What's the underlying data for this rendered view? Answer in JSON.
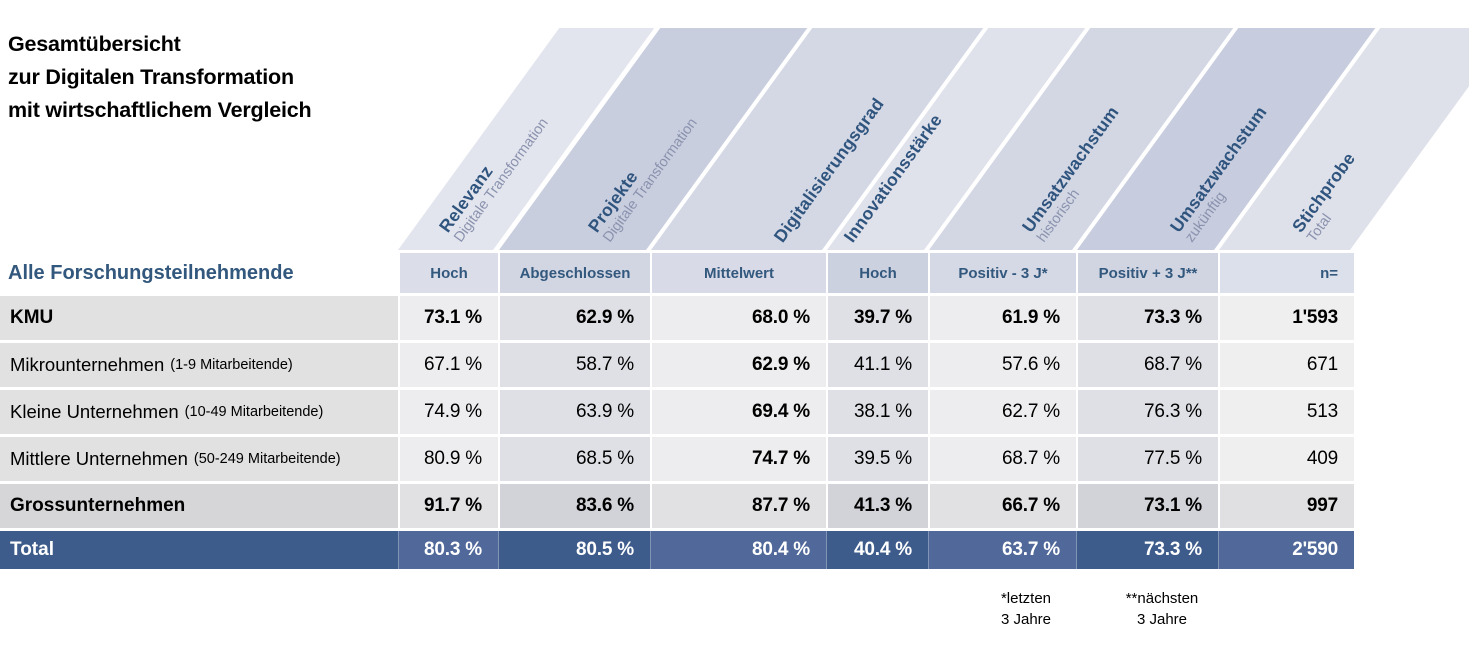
{
  "title_lines": [
    "Gesamtübersicht",
    "zur Digitalen Transformation",
    "mit wirtschaftlichem Vergleich"
  ],
  "subheader_label": "Alle Forschungsteilnehmende",
  "columns": [
    {
      "title": "Relevanz",
      "subtitle": "Digitale Transformation",
      "subheader": "Hoch",
      "band_color": "#e3e5ee",
      "subheader_color": "#dbdee9"
    },
    {
      "title": "Projekte",
      "subtitle": "Digitale Transformation",
      "subheader": "Abgeschlossen",
      "band_color": "#c9cedf",
      "subheader_color": "#d2d6e3"
    },
    {
      "title": "Digitalisierungsgrad",
      "subtitle": "",
      "subheader": "Mittelwert",
      "band_color": "#d4d8e5",
      "subheader_color": "#d8dbe7"
    },
    {
      "title": "Innovationsstärke",
      "subtitle": "",
      "subheader": "Hoch",
      "band_color": "#dfe1eb",
      "subheader_color": "#ccd1df"
    },
    {
      "title": "Umsatzwachstum",
      "subtitle": "historisch",
      "subheader": "Positiv - 3 J*",
      "band_color": "#d3d7e4",
      "subheader_color": "#d5d9e5"
    },
    {
      "title": "Umsatzwachstum",
      "subtitle": "zukünftig",
      "subheader": "Positiv + 3 J**",
      "band_color": "#c7ccde",
      "subheader_color": "#d1d5e2"
    },
    {
      "title": "Stichprobe",
      "subtitle": "Total",
      "subheader": "n=",
      "band_color": "#dfe1ea",
      "subheader_color": "#dce0ea"
    }
  ],
  "rows": [
    {
      "label": "KMU",
      "note": "",
      "values": [
        "73.1 %",
        "62.9 %",
        "68.0 %",
        "39.7 %",
        "61.9 %",
        "73.3 %",
        "1'593"
      ]
    },
    {
      "label": "Mikrounternehmen",
      "note": "(1-9 Mitarbeitende)",
      "values": [
        "67.1 %",
        "58.7 %",
        "62.9 %",
        "41.1 %",
        "57.6 %",
        "68.7 %",
        "671"
      ]
    },
    {
      "label": "Kleine Unternehmen",
      "note": "(10-49 Mitarbeitende)",
      "values": [
        "74.9 %",
        "63.9 %",
        "69.4 %",
        "38.1 %",
        "62.7 %",
        "76.3 %",
        "513"
      ]
    },
    {
      "label": "Mittlere Unternehmen",
      "note": "(50-249 Mitarbeitende)",
      "values": [
        "80.9 %",
        "68.5 %",
        "74.7 %",
        "39.5 %",
        "68.7 %",
        "77.5 %",
        "409"
      ]
    },
    {
      "label": "Grossunternehmen",
      "note": "",
      "values": [
        "91.7 %",
        "83.6 %",
        "87.7 %",
        "41.3 %",
        "66.7 %",
        "73.1 %",
        "997"
      ]
    }
  ],
  "total_row": {
    "label": "Total",
    "values": [
      "80.3 %",
      "80.5 %",
      "80.4 %",
      "40.4 %",
      "63.7 %",
      "73.3 %",
      "2'590"
    ]
  },
  "footnotes": [
    {
      "line1": "*letzten",
      "line2": "3 Jahre"
    },
    {
      "line1": "**nächsten",
      "line2": "3 Jahre"
    }
  ],
  "colors": {
    "header_title_blue": "#2f547e",
    "header_subtitle_grey": "#8a92ae",
    "subheader_text_blue": "#33587e",
    "total_row_dark": "#3d5c8b",
    "total_row_light": "#50699a",
    "row_label_grey": "#e1e1e2",
    "cell_light_grey": "#ededef",
    "cell_dark_grey": "#dfe0e5"
  },
  "chart_data": {
    "type": "table",
    "title": "Gesamtübersicht zur Digitalen Transformation mit wirtschaftlichem Vergleich",
    "columns": [
      "Relevanz Digitale Transformation - Hoch",
      "Projekte Digitale Transformation - Abgeschlossen",
      "Digitalisierungsgrad - Mittelwert",
      "Innovationsstärke - Hoch",
      "Umsatzwachstum historisch - Positiv -3J*",
      "Umsatzwachstum zukünftig - Positiv +3J**",
      "Stichprobe Total - n="
    ],
    "units": "percent (last column = sample size n)",
    "rows": [
      {
        "label": "KMU",
        "values_pct": [
          73.1,
          62.9,
          68.0,
          39.7,
          61.9,
          73.3
        ],
        "n": 1593
      },
      {
        "label": "Mikrounternehmen (1-9 Mitarbeitende)",
        "values_pct": [
          67.1,
          58.7,
          62.9,
          41.1,
          57.6,
          68.7
        ],
        "n": 671
      },
      {
        "label": "Kleine Unternehmen (10-49 Mitarbeitende)",
        "values_pct": [
          74.9,
          63.9,
          69.4,
          38.1,
          62.7,
          76.3
        ],
        "n": 513
      },
      {
        "label": "Mittlere Unternehmen (50-249 Mitarbeitende)",
        "values_pct": [
          80.9,
          68.5,
          74.7,
          39.5,
          68.7,
          77.5
        ],
        "n": 409
      },
      {
        "label": "Grossunternehmen",
        "values_pct": [
          91.7,
          83.6,
          87.7,
          41.3,
          66.7,
          73.1
        ],
        "n": 997
      },
      {
        "label": "Total",
        "values_pct": [
          80.3,
          80.5,
          80.4,
          40.4,
          63.7,
          73.3
        ],
        "n": 2590
      }
    ],
    "footnotes": [
      "*letzten 3 Jahre",
      "**nächsten 3 Jahre"
    ]
  }
}
